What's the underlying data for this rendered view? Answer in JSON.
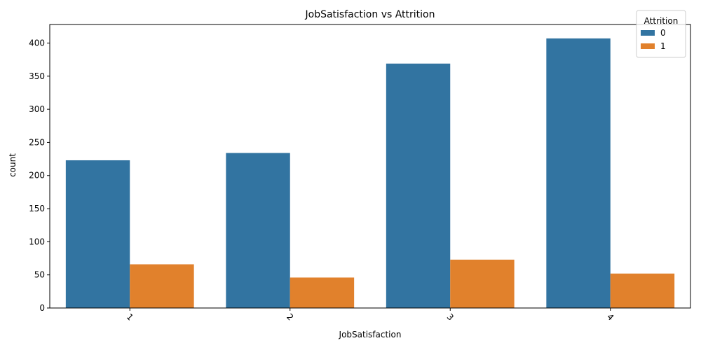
{
  "chart_data": {
    "type": "bar",
    "title": "JobSatisfaction vs Attrition",
    "xlabel": "JobSatisfaction",
    "ylabel": "count",
    "categories": [
      "1",
      "2",
      "3",
      "4"
    ],
    "series": [
      {
        "name": "0",
        "color": "#3274a1",
        "values": [
          223,
          234,
          369,
          407
        ]
      },
      {
        "name": "1",
        "color": "#e1812c",
        "values": [
          66,
          46,
          73,
          52
        ]
      }
    ],
    "ylim": [
      0,
      428
    ],
    "yticks": [
      0,
      50,
      100,
      150,
      200,
      250,
      300,
      350,
      400
    ],
    "legend": {
      "title": "Attrition",
      "placement": "top-right"
    },
    "grid": false
  }
}
